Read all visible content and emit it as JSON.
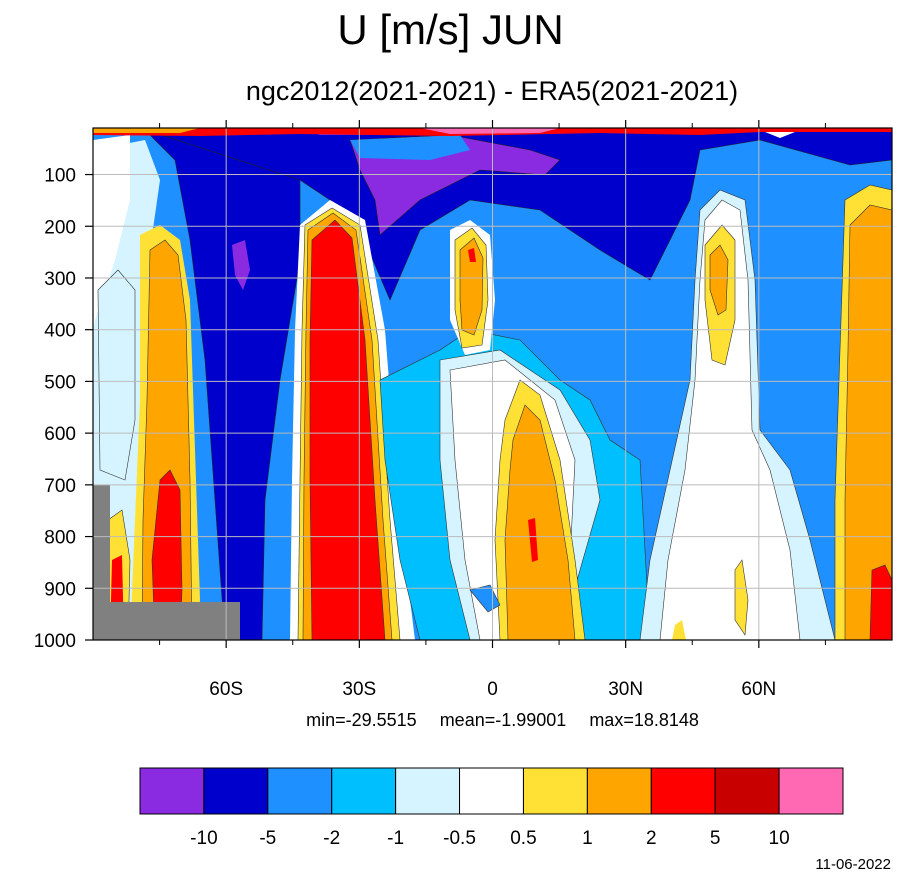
{
  "chart_data": {
    "type": "heatmap",
    "title": "U [m/s] JUN",
    "subtitle": "ngc2012(2021-2021) - ERA5(2021-2021)",
    "x_ticks": [
      "60S",
      "30S",
      "0",
      "30N",
      "60N"
    ],
    "x_tick_values": [
      -60,
      -30,
      0,
      30,
      60
    ],
    "xlim": [
      -90,
      90
    ],
    "y_ticks": [
      "100",
      "200",
      "300",
      "400",
      "500",
      "600",
      "700",
      "800",
      "900",
      "1000"
    ],
    "y_tick_values": [
      100,
      200,
      300,
      400,
      500,
      600,
      700,
      800,
      900,
      1000
    ],
    "ylim": [
      1000,
      10
    ],
    "grid": true,
    "stats": {
      "min": "min=-29.5515",
      "mean": "mean=-1.99001",
      "max": "max=18.8148"
    },
    "colorbar": {
      "labels": [
        "-10",
        "-5",
        "-2",
        "-1",
        "-0.5",
        "0.5",
        "1",
        "2",
        "5",
        "10"
      ],
      "levels": [
        -10,
        -5,
        -2,
        -1,
        -0.5,
        0.5,
        1,
        2,
        5,
        10
      ],
      "colors": [
        "#8a2be2",
        "#0000cd",
        "#1e90ff",
        "#00bfff",
        "#d5f4ff",
        "#ffffff",
        "#ffe135",
        "#ffa500",
        "#ff0000",
        "#c80000",
        "#ff69b4"
      ]
    },
    "missing_color": "#808080"
  },
  "footer": {
    "date": "11-06-2022"
  }
}
